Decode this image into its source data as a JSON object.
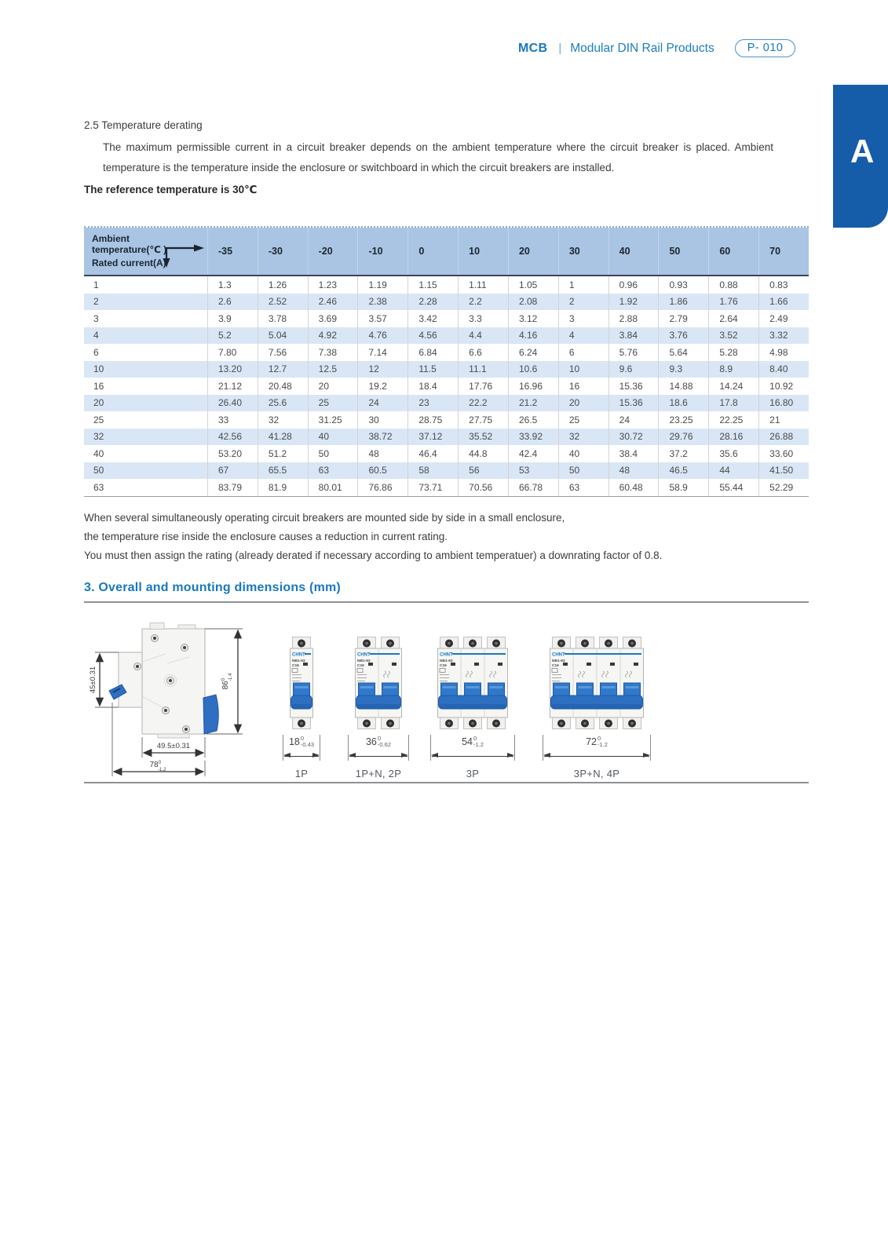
{
  "header": {
    "product": "MCB",
    "divider": "|",
    "category": "Modular DIN Rail Products",
    "badge": "P- 010",
    "tab_letter": "A"
  },
  "section_temperature": {
    "title": "2.5 Temperature derating",
    "body": "The maximum permissible current in a circuit breaker depends on the ambient temperature where the circuit breaker is placed. Ambient temperature is the temperature inside the enclosure or switchboard in which the circuit breakers are installed.",
    "note": "The reference temperature is 30℃"
  },
  "table": {
    "corner_top": "Ambient temperature(℃ )",
    "corner_bottom": "Rated current(A)",
    "col_headers": [
      "-35",
      "-30",
      "-20",
      "-10",
      "0",
      "10",
      "20",
      "30",
      "40",
      "50",
      "60",
      "70"
    ],
    "rows": [
      {
        "current": "1",
        "values": [
          "1.3",
          "1.26",
          "1.23",
          "1.19",
          "1.15",
          "1.11",
          "1.05",
          "1",
          "0.96",
          "0.93",
          "0.88",
          "0.83"
        ]
      },
      {
        "current": "2",
        "values": [
          "2.6",
          "2.52",
          "2.46",
          "2.38",
          "2.28",
          "2.2",
          "2.08",
          "2",
          "1.92",
          "1.86",
          "1.76",
          "1.66"
        ]
      },
      {
        "current": "3",
        "values": [
          "3.9",
          "3.78",
          "3.69",
          "3.57",
          "3.42",
          "3.3",
          "3.12",
          "3",
          "2.88",
          "2.79",
          "2.64",
          "2.49"
        ]
      },
      {
        "current": "4",
        "values": [
          "5.2",
          "5.04",
          "4.92",
          "4.76",
          "4.56",
          "4.4",
          "4.16",
          "4",
          "3.84",
          "3.76",
          "3.52",
          "3.32"
        ]
      },
      {
        "current": "6",
        "values": [
          "7.80",
          "7.56",
          "7.38",
          "7.14",
          "6.84",
          "6.6",
          "6.24",
          "6",
          "5.76",
          "5.64",
          "5.28",
          "4.98"
        ]
      },
      {
        "current": "10",
        "values": [
          "13.20",
          "12.7",
          "12.5",
          "12",
          "11.5",
          "11.1",
          "10.6",
          "10",
          "9.6",
          "9.3",
          "8.9",
          "8.40"
        ]
      },
      {
        "current": "16",
        "values": [
          "21.12",
          "20.48",
          "20",
          "19.2",
          "18.4",
          "17.76",
          "16.96",
          "16",
          "15.36",
          "14.88",
          "14.24",
          "10.92"
        ]
      },
      {
        "current": "20",
        "values": [
          "26.40",
          "25.6",
          "25",
          "24",
          "23",
          "22.2",
          "21.2",
          "20",
          "15.36",
          "18.6",
          "17.8",
          "16.80"
        ]
      },
      {
        "current": "25",
        "values": [
          "33",
          "32",
          "31.25",
          "30",
          "28.75",
          "27.75",
          "26.5",
          "25",
          "24",
          "23.25",
          "22.25",
          "21"
        ]
      },
      {
        "current": "32",
        "values": [
          "42.56",
          "41.28",
          "40",
          "38.72",
          "37.12",
          "35.52",
          "33.92",
          "32",
          "30.72",
          "29.76",
          "28.16",
          "26.88"
        ]
      },
      {
        "current": "40",
        "values": [
          "53.20",
          "51.2",
          "50",
          "48",
          "46.4",
          "44.8",
          "42.4",
          "40",
          "38.4",
          "37.2",
          "35.6",
          "33.60"
        ]
      },
      {
        "current": "50",
        "values": [
          "67",
          "65.5",
          "63",
          "60.5",
          "58",
          "56",
          "53",
          "50",
          "48",
          "46.5",
          "44",
          "41.50"
        ]
      },
      {
        "current": "63",
        "values": [
          "83.79",
          "81.9",
          "80.01",
          "76.86",
          "73.71",
          "70.56",
          "66.78",
          "63",
          "60.48",
          "58.9",
          "55.44",
          "52.29"
        ]
      }
    ]
  },
  "notes": [
    "When several simultaneously operating circuit breakers are mounted side by side in a small enclosure,",
    "the temperature rise inside the enclosure causes a reduction in current rating.",
    "You must then assign the rating (already derated if necessary according to ambient temperatuer) a downrating factor of 0.8."
  ],
  "section_dimensions": {
    "title": "3. Overall and mounting dimensions (mm)"
  },
  "dims": {
    "side_view": {
      "front_height": "45±0.31",
      "height": "86",
      "height_sup": "0",
      "height_sub": "-1.4",
      "mount_width": "49.5±0.31",
      "depth": "78",
      "depth_sup": "0",
      "depth_sub": "-1.2"
    },
    "front_views": [
      {
        "label": "1P",
        "width": "18",
        "sup": "0",
        "sub": "-0.43",
        "poles": 1
      },
      {
        "label": "1P+N, 2P",
        "width": "36",
        "sup": "0",
        "sub": "-0.62",
        "poles": 2
      },
      {
        "label": "3P",
        "width": "54",
        "sup": "0",
        "sub": "-1.2",
        "poles": 3
      },
      {
        "label": "3P+N, 4P",
        "width": "72",
        "sup": "0",
        "sub": "-1.2",
        "poles": 4
      }
    ],
    "brand": "CHNT",
    "model": "NB1-63",
    "rating": "C16"
  },
  "colors": {
    "accent_blue": "#1878be",
    "tab_blue": "#155ca9",
    "table_header_bg": "#a9c5e3",
    "table_alt_row": "#d9e6f5",
    "header_divider_dark": "#39455c",
    "toggle_blue": "#2d6fc0"
  }
}
